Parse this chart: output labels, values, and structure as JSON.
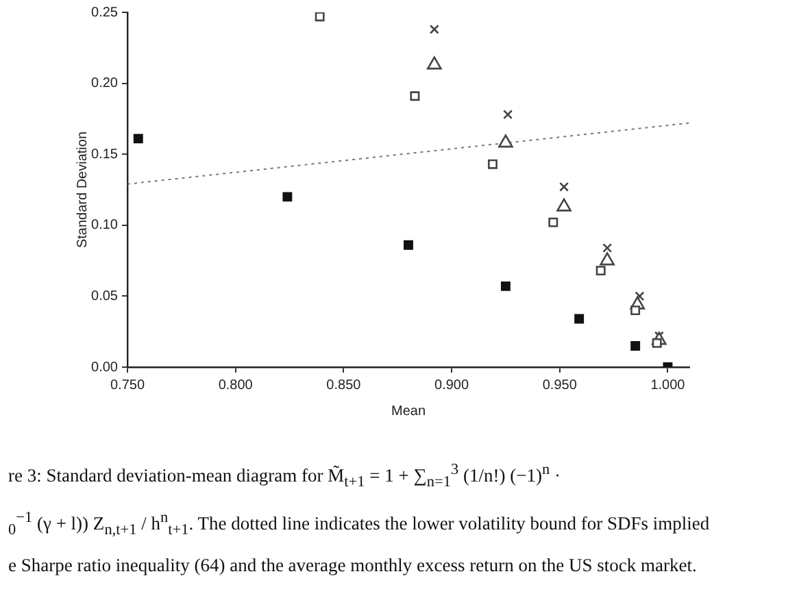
{
  "chart_data": {
    "type": "scatter",
    "xlabel": "Mean",
    "ylabel": "Standard Deviation",
    "xlim": [
      0.75,
      1.01
    ],
    "xticks": [
      {
        "value": 0.75,
        "label": "0.750"
      },
      {
        "value": 0.8,
        "label": "0.800"
      },
      {
        "value": 0.85,
        "label": "0.850"
      },
      {
        "value": 0.9,
        "label": "0.900"
      },
      {
        "value": 0.95,
        "label": "0.950"
      },
      {
        "value": 1.0,
        "label": "1.000"
      }
    ],
    "ylim": [
      0,
      0.25
    ],
    "yticks": [
      {
        "value": 0,
        "label": "0.00"
      },
      {
        "value": 0.05,
        "label": "0.05"
      },
      {
        "value": 0.1,
        "label": "0.10"
      },
      {
        "value": 0.15,
        "label": "0.15"
      },
      {
        "value": 0.2,
        "label": "0.20"
      },
      {
        "value": 0.25,
        "label": "0.25"
      }
    ],
    "grid": false,
    "legend": false,
    "series": [
      {
        "type": "scatter",
        "marker": "square",
        "color": "#111111",
        "x": [
          0.755,
          0.824,
          0.88,
          0.925,
          0.959,
          0.985,
          1.0
        ],
        "values": [
          0.161,
          0.12,
          0.086,
          0.057,
          0.034,
          0.015,
          0
        ]
      },
      {
        "type": "scatter",
        "marker": "square",
        "color": "#444444",
        "x": [
          0.839,
          0.883,
          0.919,
          0.947,
          0.969,
          0.985,
          0.995
        ],
        "values": [
          0.247,
          0.191,
          0.143,
          0.102,
          0.068,
          0.04,
          0.017
        ]
      },
      {
        "type": "scatter",
        "marker": "triangle",
        "color": "#444444",
        "x": [
          0.892,
          0.925,
          0.952,
          0.972,
          0.986,
          0.996
        ],
        "values": [
          0.213,
          0.158,
          0.113,
          0.075,
          0.044,
          0.019
        ]
      },
      {
        "type": "scatter",
        "marker": "cross",
        "color": "#444444",
        "x": [
          0.892,
          0.926,
          0.952,
          0.972,
          0.987,
          0.996
        ],
        "values": [
          0.238,
          0.178,
          0.127,
          0.084,
          0.05,
          0.022
        ]
      },
      {
        "type": "line",
        "line_style": "dotted",
        "marker": "none",
        "color": "#777777",
        "x": [
          0.75,
          1.01
        ],
        "values": [
          0.129,
          0.172
        ]
      }
    ],
    "annotations": [
      "re 3:  Standard deviation-mean diagram for M̃$_{t+1}$ = 1 + ∑$_{n=1}$$^{3}$ (1/n!) (−1)$^{n}$ ·",
      "$_{0}$$^{−1}$ (γ + l)) Z$_{n,t+1}$ / h$^{n}$$_{t+1}$.  The dotted line indicates the lower volatility bound for SDFs implied",
      "e Sharpe ratio inequality (64) and the average monthly excess return on the US stock market."
    ]
  }
}
